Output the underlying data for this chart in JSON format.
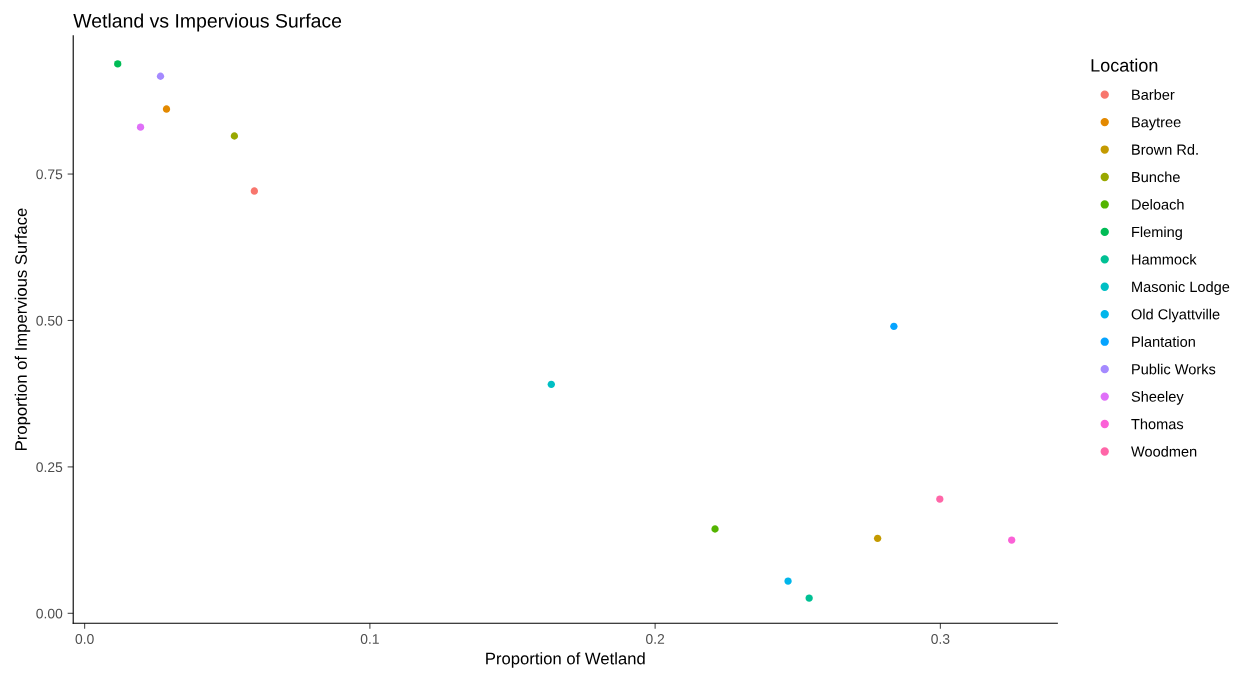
{
  "chart_data": {
    "type": "scatter",
    "title": "Wetland vs Impervious Surface",
    "xlabel": "Proportion of Wetland",
    "ylabel": "Proportion of Impervious Surface",
    "legend_title": "Location",
    "legend": "right",
    "grid": false,
    "marker": "circle",
    "xlim": [
      -0.004,
      0.341
    ],
    "ylim": [
      -0.017,
      0.986
    ],
    "xticks": [
      {
        "value": 0,
        "label": "0.0"
      },
      {
        "value": 0.1,
        "label": "0.1"
      },
      {
        "value": 0.2,
        "label": "0.2"
      },
      {
        "value": 0.3,
        "label": "0.3"
      }
    ],
    "yticks": [
      {
        "value": 0,
        "label": "0.00"
      },
      {
        "value": 0.25,
        "label": "0.25"
      },
      {
        "value": 0.5,
        "label": "0.50"
      },
      {
        "value": 0.75,
        "label": "0.75"
      }
    ],
    "series": [
      {
        "name": "Barber",
        "color": "#f8766d",
        "x": [
          0.0595
        ],
        "values": [
          0.721
        ]
      },
      {
        "name": "Baytree",
        "color": "#e38900",
        "x": [
          0.0287
        ],
        "values": [
          0.861
        ]
      },
      {
        "name": "Brown Rd.",
        "color": "#c49a00",
        "x": [
          0.278
        ],
        "values": [
          0.128
        ]
      },
      {
        "name": "Bunche",
        "color": "#99a800",
        "x": [
          0.0525
        ],
        "values": [
          0.815
        ]
      },
      {
        "name": "Deloach",
        "color": "#53b400",
        "x": [
          0.221
        ],
        "values": [
          0.144
        ]
      },
      {
        "name": "Fleming",
        "color": "#00bc56",
        "x": [
          0.0116
        ],
        "values": [
          0.938
        ]
      },
      {
        "name": "Hammock",
        "color": "#00c094",
        "x": [
          0.254
        ],
        "values": [
          0.026
        ]
      },
      {
        "name": "Masonic Lodge",
        "color": "#00bfc4",
        "x": [
          0.1636
        ],
        "values": [
          0.391
        ]
      },
      {
        "name": "Old Clyattville",
        "color": "#00b6eb",
        "x": [
          0.2466
        ],
        "values": [
          0.055
        ]
      },
      {
        "name": "Plantation",
        "color": "#06a4ff",
        "x": [
          0.2837
        ],
        "values": [
          0.49
        ]
      },
      {
        "name": "Public Works",
        "color": "#a58aff",
        "x": [
          0.0266
        ],
        "values": [
          0.917
        ]
      },
      {
        "name": "Sheeley",
        "color": "#df70f8",
        "x": [
          0.0196
        ],
        "values": [
          0.83
        ]
      },
      {
        "name": "Thomas",
        "color": "#fb61d7",
        "x": [
          0.325
        ],
        "values": [
          0.125
        ]
      },
      {
        "name": "Woodmen",
        "color": "#ff66a8",
        "x": [
          0.2998
        ],
        "values": [
          0.195
        ]
      }
    ]
  }
}
